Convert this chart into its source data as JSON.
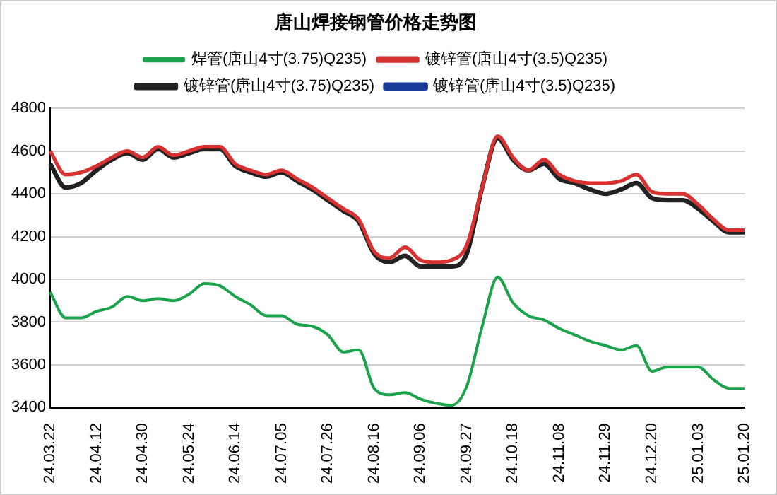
{
  "chart_data": {
    "type": "line",
    "title": "唐山焊接钢管价格走势图",
    "categories": [
      "24.03.22",
      null,
      null,
      "24.04.12",
      null,
      null,
      "24.04.30",
      null,
      null,
      "24.05.24",
      null,
      null,
      "24.06.14",
      null,
      null,
      "24.07.05",
      null,
      null,
      "24.07.26",
      null,
      null,
      "24.08.16",
      null,
      null,
      "24.09.06",
      null,
      null,
      "24.09.27",
      null,
      null,
      "24.10.18",
      null,
      null,
      "24.11.08",
      null,
      null,
      "24.11.29",
      null,
      null,
      "24.12.20",
      null,
      null,
      "25.01.03",
      null,
      null,
      "25.01.20"
    ],
    "series": [
      {
        "name": "焊管(唐山4寸(3.75)Q235)",
        "color": "#1aa34a",
        "values": [
          3940,
          3820,
          3820,
          3850,
          3870,
          3920,
          3900,
          3910,
          3900,
          3930,
          3980,
          3970,
          3920,
          3880,
          3830,
          3830,
          3790,
          3780,
          3740,
          3660,
          3670,
          3490,
          3460,
          3470,
          3440,
          3420,
          3410,
          3500,
          3780,
          4010,
          3890,
          3830,
          3810,
          3770,
          3740,
          3710,
          3690,
          3670,
          3690,
          3570,
          3590,
          3590,
          3590,
          3530,
          3490,
          3490
        ]
      },
      {
        "name": "镀锌管(唐山4寸(3.5)Q235)",
        "color": "#d93030",
        "values": [
          4600,
          4490,
          4500,
          4530,
          4570,
          4600,
          4570,
          4620,
          4580,
          4600,
          4620,
          4620,
          4540,
          4510,
          4490,
          4510,
          4470,
          4430,
          4380,
          4330,
          4280,
          4130,
          4100,
          4150,
          4090,
          4080,
          4090,
          4160,
          4430,
          4670,
          4570,
          4510,
          4560,
          4490,
          4460,
          4450,
          4450,
          4460,
          4490,
          4410,
          4400,
          4400,
          4350,
          4280,
          4230,
          4230
        ]
      },
      {
        "name": "镀锌管(唐山4寸(3.75)Q235)",
        "color": "#222222",
        "values": [
          4540,
          4430,
          4450,
          4510,
          4560,
          4590,
          4560,
          4610,
          4570,
          4590,
          4610,
          4610,
          4530,
          4500,
          4480,
          4500,
          4460,
          4420,
          4370,
          4320,
          4270,
          4120,
          4080,
          4110,
          4060,
          4060,
          4060,
          4120,
          4430,
          4660,
          4560,
          4510,
          4540,
          4470,
          4450,
          4420,
          4400,
          4420,
          4450,
          4380,
          4370,
          4370,
          4330,
          4270,
          4220,
          4220
        ]
      },
      {
        "name": "镀锌管(唐山4寸(3.5)Q235)",
        "color": "#1a3a9a",
        "values": [
          null,
          null,
          null,
          null,
          null,
          null,
          null,
          null,
          null,
          null,
          null,
          null,
          null,
          null,
          null,
          null,
          null,
          null,
          null,
          null,
          null,
          null,
          null,
          null,
          null,
          null,
          null,
          null,
          null,
          null,
          null,
          null,
          null,
          null,
          null,
          null,
          null,
          null,
          null,
          null,
          null,
          null,
          null,
          null,
          null,
          null
        ]
      }
    ],
    "ylim": [
      3400,
      4800
    ],
    "yticks": [
      3400,
      3600,
      3800,
      4000,
      4200,
      4400,
      4600,
      4800
    ],
    "grid": "y",
    "legend": "top",
    "marker": "none",
    "line_style": "solid"
  }
}
